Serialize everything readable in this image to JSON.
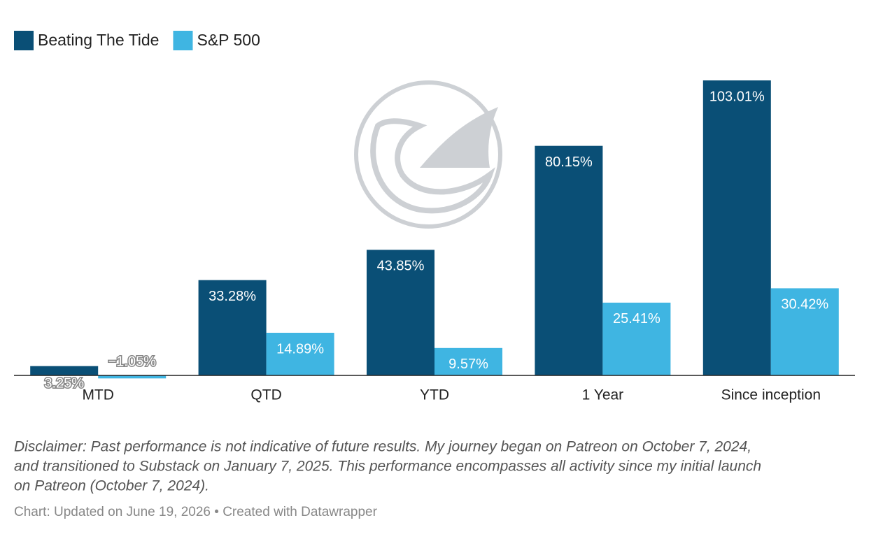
{
  "chart_data": {
    "type": "bar",
    "categories": [
      "MTD",
      "QTD",
      "YTD",
      "1 Year",
      "Since inception"
    ],
    "series": [
      {
        "name": "Beating The Tide",
        "color": "#0a4f76",
        "values": [
          3.25,
          33.28,
          43.85,
          80.15,
          103.01
        ],
        "value_labels": [
          "3.25%",
          "33.28%",
          "43.85%",
          "80.15%",
          "103.01%"
        ]
      },
      {
        "name": "S&P 500",
        "color": "#3fb5e2",
        "values": [
          -1.05,
          14.89,
          9.57,
          25.41,
          30.42
        ],
        "value_labels": [
          "−1.05%",
          "14.89%",
          "9.57%",
          "25.41%",
          "30.42%"
        ]
      }
    ],
    "notes": [
      "Disclaimer: Past performance is not indicative of future results. My journey began on Patreon on October 7, 2024,",
      "and transitioned to Substack on January 7, 2025. This performance encompasses all activity since my initial launch",
      "on Patreon (October 7, 2024)."
    ],
    "footer": "Chart: Updated on June 19, 2026 • Created with Datawrapper"
  }
}
